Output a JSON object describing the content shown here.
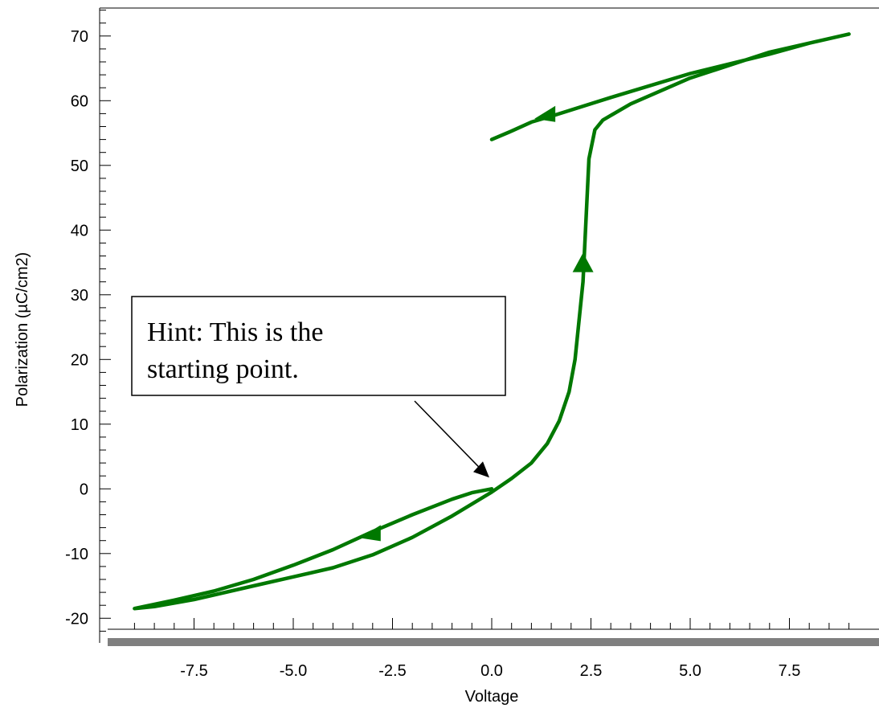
{
  "chart_data": {
    "type": "line",
    "title": "",
    "xlabel": "Voltage",
    "ylabel": "Polarization (µC/cm2)",
    "xlim": [
      -9,
      9
    ],
    "ylim": [
      -22,
      74
    ],
    "x_ticks": [
      -7.5,
      -5.0,
      -2.5,
      0.0,
      2.5,
      5.0,
      7.5
    ],
    "x_tick_labels": [
      "-7.5",
      "-5.0",
      "-2.5",
      "0.0",
      "2.5",
      "5.0",
      "7.5"
    ],
    "y_ticks": [
      -20,
      -10,
      0,
      10,
      20,
      30,
      40,
      50,
      60,
      70
    ],
    "y_tick_labels": [
      "-20",
      "-10",
      "0",
      "10",
      "20",
      "30",
      "40",
      "50",
      "60",
      "70"
    ],
    "line_color": "#007800",
    "series": [
      {
        "x": [
          0.0,
          -0.5,
          -1.0,
          -2.0,
          -3.0,
          -4.0,
          -5.0,
          -6.0,
          -7.0,
          -8.0,
          -9.0,
          -8.5,
          -7.5,
          -6.0,
          -5.0,
          -4.0,
          -3.0,
          -2.0,
          -1.0,
          0.0,
          0.5,
          1.0,
          1.4,
          1.7,
          1.95,
          2.1,
          2.3,
          2.45,
          2.6,
          2.8,
          3.5,
          5.0,
          7.0,
          9.0,
          8.0,
          7.0,
          5.0,
          3.0,
          1.5,
          1.0,
          0.5,
          0.0
        ],
        "y": [
          0.0,
          -0.6,
          -1.6,
          -4.0,
          -6.6,
          -9.4,
          -11.8,
          -14.0,
          -15.8,
          -17.2,
          -18.5,
          -18.2,
          -17.1,
          -15.0,
          -13.6,
          -12.2,
          -10.2,
          -7.5,
          -4.2,
          -0.5,
          1.6,
          4.0,
          7.0,
          10.5,
          15.0,
          20.0,
          32.0,
          51.0,
          55.5,
          57.0,
          59.5,
          63.5,
          67.5,
          70.3,
          68.9,
          67.2,
          64.2,
          60.5,
          57.6,
          56.7,
          55.3,
          54.0
        ]
      }
    ],
    "annotations": [
      {
        "lines": [
          "Hint:  This is the",
          "starting point."
        ],
        "arrow_to": {
          "x": 0.0,
          "y": 0.0
        }
      }
    ],
    "direction_arrows": [
      {
        "at": {
          "x": 1.4,
          "y": 58.2
        },
        "direction": "left"
      },
      {
        "at": {
          "x": -3.0,
          "y": -6.6
        },
        "direction": "left"
      },
      {
        "at": {
          "x": 2.3,
          "y": 34.0
        },
        "direction": "up"
      }
    ],
    "grid": false
  }
}
